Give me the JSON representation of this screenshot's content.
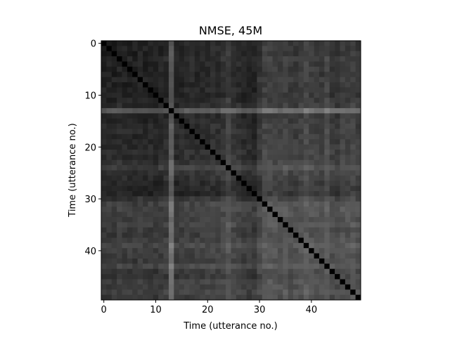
{
  "chart_data": {
    "type": "heatmap",
    "title": "NMSE, 45M",
    "xlabel": "Time (utterance no.)",
    "ylabel": "Time (utterance no.)",
    "size": 50,
    "colormap": "gray",
    "value_range": [
      0,
      1
    ],
    "x_ticks": [
      0,
      10,
      20,
      30,
      40
    ],
    "y_ticks": [
      0,
      10,
      20,
      30,
      40
    ],
    "x_tick_labels": [
      "0",
      "10",
      "20",
      "30",
      "40"
    ],
    "y_tick_labels": [
      "0",
      "10",
      "20",
      "30",
      "40"
    ],
    "diagonal_value": 0,
    "utterance_levels": [
      0.12,
      0.14,
      0.12,
      0.16,
      0.14,
      0.14,
      0.12,
      0.16,
      0.12,
      0.14,
      0.12,
      0.14,
      0.17,
      0.55,
      0.14,
      0.16,
      0.18,
      0.18,
      0.16,
      0.18,
      0.2,
      0.22,
      0.2,
      0.24,
      0.34,
      0.24,
      0.2,
      0.16,
      0.14,
      0.13,
      0.26,
      0.36,
      0.36,
      0.34,
      0.32,
      0.36,
      0.3,
      0.3,
      0.34,
      0.4,
      0.34,
      0.32,
      0.3,
      0.4,
      0.28,
      0.26,
      0.34,
      0.32,
      0.36,
      0.3
    ],
    "image_rows": []
  }
}
